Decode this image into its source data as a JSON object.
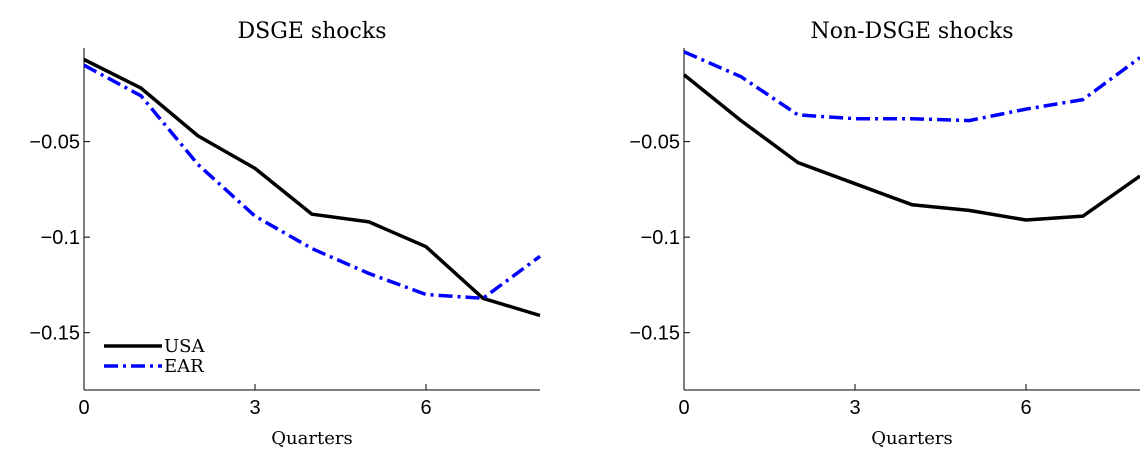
{
  "chart_data": [
    {
      "type": "line",
      "title": "DSGE shocks",
      "xlabel": "Quarters",
      "ylabel": "",
      "xlim": [
        0,
        8
      ],
      "ylim": [
        -0.18,
        -0.001
      ],
      "xticks": [
        0,
        3,
        6
      ],
      "xtick_labels": [
        "0",
        "3",
        "6"
      ],
      "yticks": [
        -0.05,
        -0.1,
        -0.15
      ],
      "ytick_labels": [
        "−0.05",
        "−0.1",
        "−0.15"
      ],
      "x": [
        0,
        1,
        2,
        3,
        4,
        5,
        6,
        7,
        8
      ],
      "series": [
        {
          "name": "USA",
          "color": "#000000",
          "style": "solid",
          "values": [
            -0.007,
            -0.022,
            -0.047,
            -0.064,
            -0.088,
            -0.092,
            -0.105,
            -0.132,
            -0.141
          ]
        },
        {
          "name": "EAR",
          "color": "#0000ff",
          "style": "dashdot",
          "values": [
            -0.01,
            -0.026,
            -0.062,
            -0.089,
            -0.106,
            -0.119,
            -0.13,
            -0.132,
            -0.11
          ]
        }
      ],
      "legend": {
        "placement": "bottom-left",
        "entries": [
          "USA",
          "EAR"
        ]
      }
    },
    {
      "type": "line",
      "title": "Non-DSGE shocks",
      "xlabel": "Quarters",
      "ylabel": "",
      "xlim": [
        0,
        8
      ],
      "ylim": [
        -0.18,
        -0.001
      ],
      "xticks": [
        0,
        3,
        6
      ],
      "xtick_labels": [
        "0",
        "3",
        "6"
      ],
      "yticks": [
        -0.05,
        -0.1,
        -0.15
      ],
      "ytick_labels": [
        "−0.05",
        "−0.1",
        "−0.15"
      ],
      "x": [
        0,
        1,
        2,
        3,
        4,
        5,
        6,
        7,
        8
      ],
      "series": [
        {
          "name": "USA",
          "color": "#000000",
          "style": "solid",
          "values": [
            -0.015,
            -0.039,
            -0.061,
            -0.072,
            -0.083,
            -0.086,
            -0.091,
            -0.089,
            -0.068
          ]
        },
        {
          "name": "EAR",
          "color": "#0000ff",
          "style": "dashdot",
          "values": [
            -0.003,
            -0.016,
            -0.036,
            -0.038,
            -0.038,
            -0.039,
            -0.033,
            -0.028,
            -0.006
          ]
        }
      ]
    }
  ]
}
